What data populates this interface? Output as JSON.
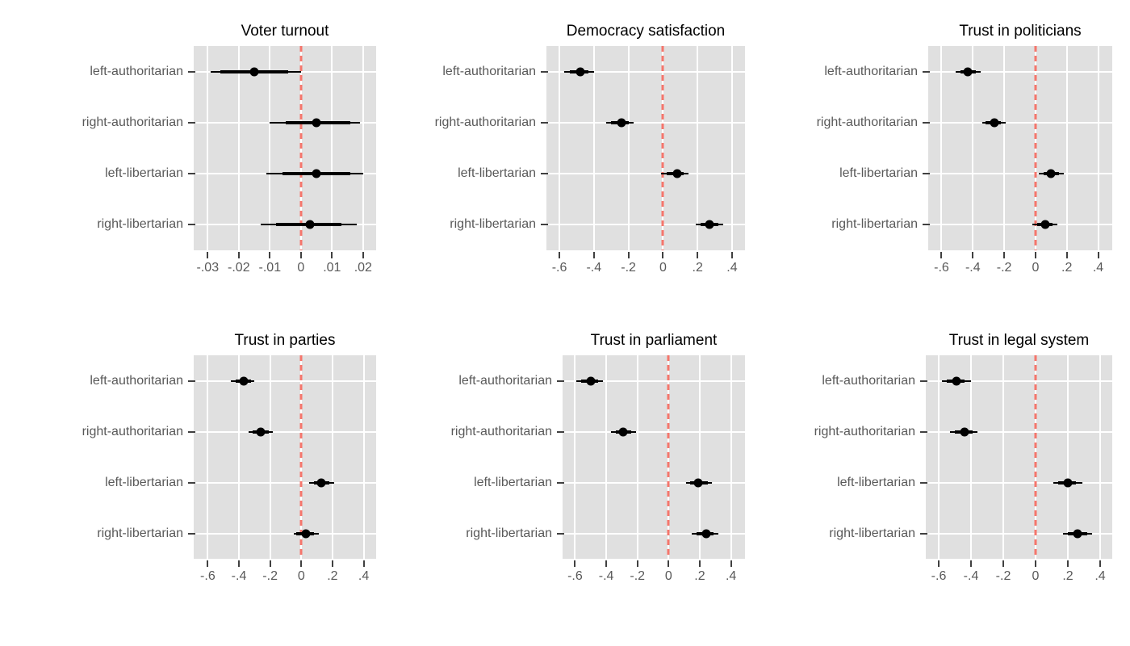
{
  "figure": {
    "background": "#ffffff",
    "plot_background": "#e0e0e0",
    "gridline_color": "#ffffff",
    "reference_line_color": "#f5766c",
    "marker_color": "#000000",
    "axis_text_color": "#595959",
    "axis_tick_color": "#404040",
    "title_color": "#000000"
  },
  "chart_data": [
    {
      "type": "scatter",
      "subtype": "dot-and-whisker coefficient plot",
      "title": "Voter turnout",
      "categories": [
        "left-authoritarian",
        "right-authoritarian",
        "left-libertarian",
        "right-libertarian"
      ],
      "series": [
        {
          "category": "left-authoritarian",
          "estimate": -0.015,
          "ci_thick": [
            -0.026,
            -0.004
          ],
          "ci_thin": [
            -0.029,
            0.0
          ]
        },
        {
          "category": "right-authoritarian",
          "estimate": 0.005,
          "ci_thick": [
            -0.005,
            0.016
          ],
          "ci_thin": [
            -0.01,
            0.019
          ]
        },
        {
          "category": "left-libertarian",
          "estimate": 0.005,
          "ci_thick": [
            -0.006,
            0.016
          ],
          "ci_thin": [
            -0.011,
            0.02
          ]
        },
        {
          "category": "right-libertarian",
          "estimate": 0.003,
          "ci_thick": [
            -0.008,
            0.013
          ],
          "ci_thin": [
            -0.013,
            0.018
          ]
        }
      ],
      "x_ticks": [
        -0.03,
        -0.02,
        -0.01,
        0,
        0.01,
        0.02
      ],
      "x_tick_labels": [
        "-.03",
        "-.02",
        "-.01",
        "0",
        ".01",
        ".02"
      ],
      "xlim": [
        -0.0345,
        0.0242
      ],
      "reference_line_x": 0,
      "grid": true,
      "legend": false
    },
    {
      "type": "scatter",
      "subtype": "dot-and-whisker coefficient plot",
      "title": "Democracy satisfaction",
      "categories": [
        "left-authoritarian",
        "right-authoritarian",
        "left-libertarian",
        "right-libertarian"
      ],
      "series": [
        {
          "category": "left-authoritarian",
          "estimate": -0.48,
          "ci_thick": [
            -0.54,
            -0.43
          ],
          "ci_thin": [
            -0.57,
            -0.4
          ]
        },
        {
          "category": "right-authoritarian",
          "estimate": -0.24,
          "ci_thick": [
            -0.3,
            -0.2
          ],
          "ci_thin": [
            -0.33,
            -0.17
          ]
        },
        {
          "category": "left-libertarian",
          "estimate": 0.08,
          "ci_thick": [
            0.02,
            0.12
          ],
          "ci_thin": [
            -0.01,
            0.15
          ]
        },
        {
          "category": "right-libertarian",
          "estimate": 0.27,
          "ci_thick": [
            0.22,
            0.32
          ],
          "ci_thin": [
            0.19,
            0.35
          ]
        }
      ],
      "x_ticks": [
        -0.6,
        -0.4,
        -0.2,
        0,
        0.2,
        0.4
      ],
      "x_tick_labels": [
        "-.6",
        "-.4",
        "-.2",
        "0",
        ".2",
        ".4"
      ],
      "xlim": [
        -0.675,
        0.475
      ],
      "reference_line_x": 0,
      "grid": true,
      "legend": false
    },
    {
      "type": "scatter",
      "subtype": "dot-and-whisker coefficient plot",
      "title": "Trust in politicians",
      "categories": [
        "left-authoritarian",
        "right-authoritarian",
        "left-libertarian",
        "right-libertarian"
      ],
      "series": [
        {
          "category": "left-authoritarian",
          "estimate": -0.43,
          "ci_thick": [
            -0.48,
            -0.38
          ],
          "ci_thin": [
            -0.51,
            -0.35
          ]
        },
        {
          "category": "right-authoritarian",
          "estimate": -0.26,
          "ci_thick": [
            -0.32,
            -0.22
          ],
          "ci_thin": [
            -0.34,
            -0.19
          ]
        },
        {
          "category": "left-libertarian",
          "estimate": 0.1,
          "ci_thick": [
            0.05,
            0.15
          ],
          "ci_thin": [
            0.02,
            0.18
          ]
        },
        {
          "category": "right-libertarian",
          "estimate": 0.06,
          "ci_thick": [
            0.01,
            0.11
          ],
          "ci_thin": [
            -0.02,
            0.14
          ]
        }
      ],
      "x_ticks": [
        -0.6,
        -0.4,
        -0.2,
        0,
        0.2,
        0.4
      ],
      "x_tick_labels": [
        "-.6",
        "-.4",
        "-.2",
        "0",
        ".2",
        ".4"
      ],
      "xlim": [
        -0.685,
        0.49
      ],
      "reference_line_x": 0,
      "grid": true,
      "legend": false
    },
    {
      "type": "scatter",
      "subtype": "dot-and-whisker coefficient plot",
      "title": "Trust in parties",
      "categories": [
        "left-authoritarian",
        "right-authoritarian",
        "left-libertarian",
        "right-libertarian"
      ],
      "series": [
        {
          "category": "left-authoritarian",
          "estimate": -0.37,
          "ci_thick": [
            -0.42,
            -0.32
          ],
          "ci_thin": [
            -0.45,
            -0.3
          ]
        },
        {
          "category": "right-authoritarian",
          "estimate": -0.26,
          "ci_thick": [
            -0.31,
            -0.21
          ],
          "ci_thin": [
            -0.34,
            -0.18
          ]
        },
        {
          "category": "left-libertarian",
          "estimate": 0.13,
          "ci_thick": [
            0.08,
            0.18
          ],
          "ci_thin": [
            0.05,
            0.21
          ]
        },
        {
          "category": "right-libertarian",
          "estimate": 0.03,
          "ci_thick": [
            -0.03,
            0.08
          ],
          "ci_thin": [
            -0.05,
            0.11
          ]
        }
      ],
      "x_ticks": [
        -0.6,
        -0.4,
        -0.2,
        0,
        0.2,
        0.4
      ],
      "x_tick_labels": [
        "-.6",
        "-.4",
        "-.2",
        "0",
        ".2",
        ".4"
      ],
      "xlim": [
        -0.69,
        0.48
      ],
      "reference_line_x": 0,
      "grid": true,
      "legend": false
    },
    {
      "type": "scatter",
      "subtype": "dot-and-whisker coefficient plot",
      "title": "Trust in parliament",
      "categories": [
        "left-authoritarian",
        "right-authoritarian",
        "left-libertarian",
        "right-libertarian"
      ],
      "series": [
        {
          "category": "left-authoritarian",
          "estimate": -0.5,
          "ci_thick": [
            -0.56,
            -0.45
          ],
          "ci_thin": [
            -0.59,
            -0.42
          ]
        },
        {
          "category": "right-authoritarian",
          "estimate": -0.29,
          "ci_thick": [
            -0.34,
            -0.24
          ],
          "ci_thin": [
            -0.37,
            -0.21
          ]
        },
        {
          "category": "left-libertarian",
          "estimate": 0.19,
          "ci_thick": [
            0.14,
            0.25
          ],
          "ci_thin": [
            0.11,
            0.28
          ]
        },
        {
          "category": "right-libertarian",
          "estimate": 0.24,
          "ci_thick": [
            0.18,
            0.29
          ],
          "ci_thin": [
            0.15,
            0.32
          ]
        }
      ],
      "x_ticks": [
        -0.6,
        -0.4,
        -0.2,
        0,
        0.2,
        0.4
      ],
      "x_tick_labels": [
        "-.6",
        "-.4",
        "-.2",
        "0",
        ".2",
        ".4"
      ],
      "xlim": [
        -0.68,
        0.49
      ],
      "reference_line_x": 0,
      "grid": true,
      "legend": false
    },
    {
      "type": "scatter",
      "subtype": "dot-and-whisker coefficient plot",
      "title": "Trust in legal system",
      "categories": [
        "left-authoritarian",
        "right-authoritarian",
        "left-libertarian",
        "right-libertarian"
      ],
      "series": [
        {
          "category": "left-authoritarian",
          "estimate": -0.49,
          "ci_thick": [
            -0.55,
            -0.44
          ],
          "ci_thin": [
            -0.58,
            -0.4
          ]
        },
        {
          "category": "right-authoritarian",
          "estimate": -0.44,
          "ci_thick": [
            -0.5,
            -0.39
          ],
          "ci_thin": [
            -0.53,
            -0.36
          ]
        },
        {
          "category": "left-libertarian",
          "estimate": 0.2,
          "ci_thick": [
            0.14,
            0.25
          ],
          "ci_thin": [
            0.11,
            0.29
          ]
        },
        {
          "category": "right-libertarian",
          "estimate": 0.26,
          "ci_thick": [
            0.2,
            0.32
          ],
          "ci_thin": [
            0.17,
            0.35
          ]
        }
      ],
      "x_ticks": [
        -0.6,
        -0.4,
        -0.2,
        0,
        0.2,
        0.4
      ],
      "x_tick_labels": [
        "-.6",
        "-.4",
        "-.2",
        "0",
        ".2",
        ".4"
      ],
      "xlim": [
        -0.68,
        0.475
      ],
      "reference_line_x": 0,
      "grid": true,
      "legend": false
    }
  ]
}
